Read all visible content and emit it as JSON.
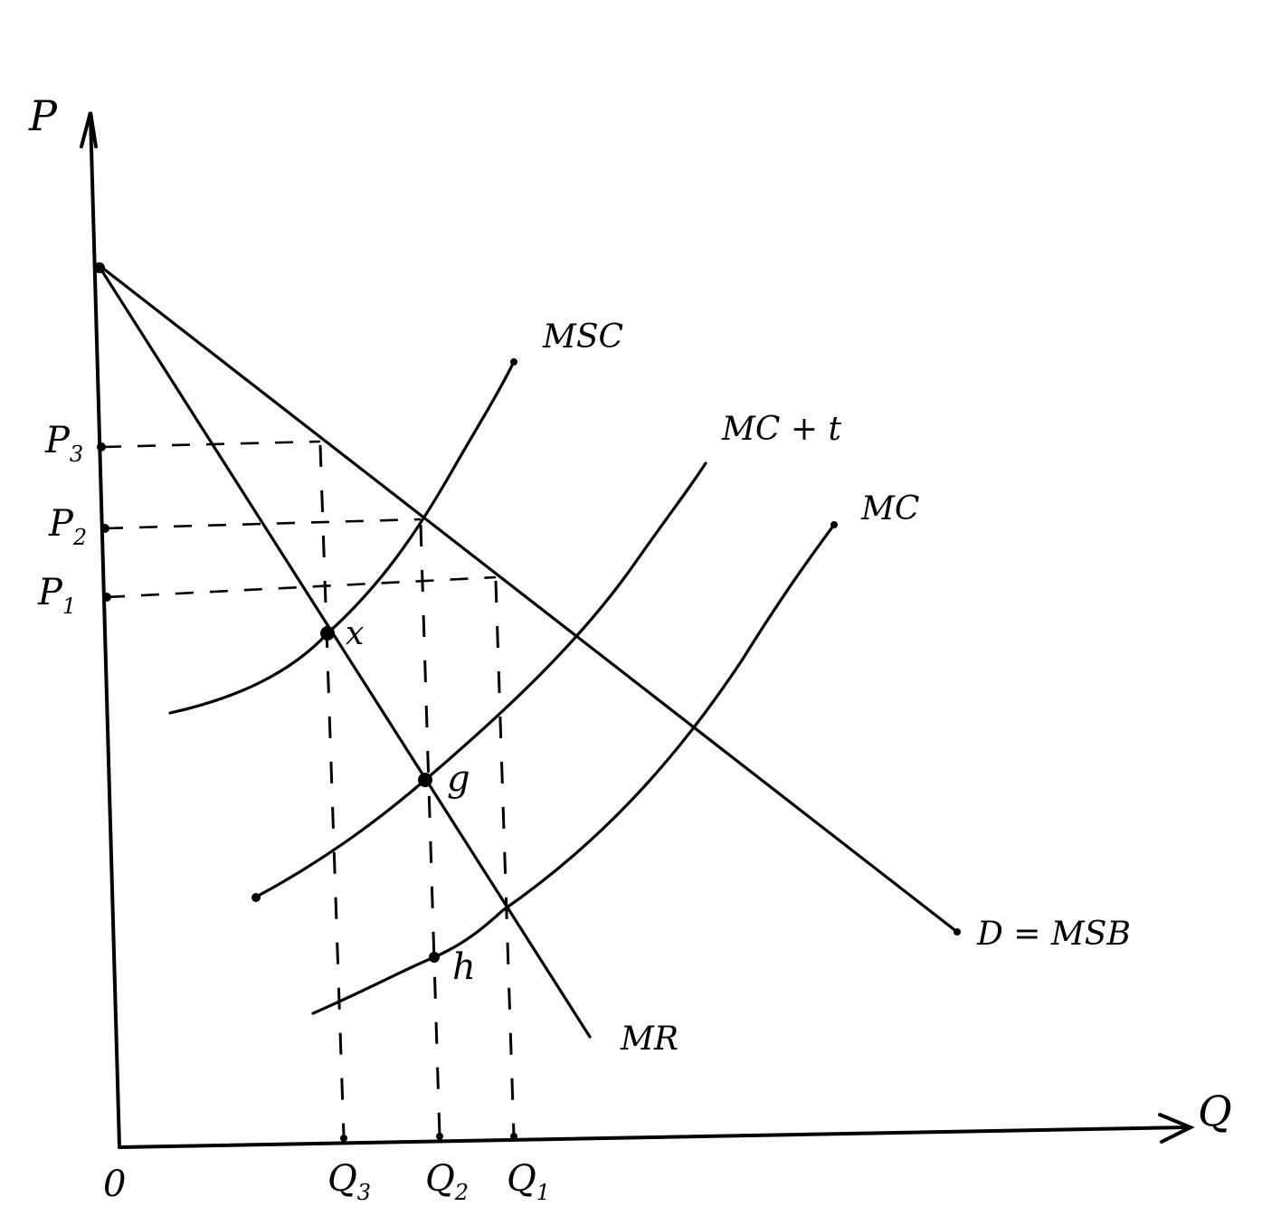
{
  "axes": {
    "y_label": "P",
    "x_label": "Q",
    "origin_label": "0"
  },
  "price_labels": {
    "p3": {
      "base": "P",
      "sub": "3"
    },
    "p2": {
      "base": "P",
      "sub": "2"
    },
    "p1": {
      "base": "P",
      "sub": "1"
    }
  },
  "quantity_labels": {
    "q3": {
      "base": "Q",
      "sub": "3"
    },
    "q2": {
      "base": "Q",
      "sub": "2"
    },
    "q1": {
      "base": "Q",
      "sub": "1"
    }
  },
  "curve_labels": {
    "msc": "MSC",
    "mc_t": "MC + t",
    "mc": "MC",
    "demand": "D = MSB",
    "mr": "MR"
  },
  "point_labels": {
    "x": "x",
    "g": "g",
    "h": "h"
  },
  "colors": {
    "ink": "#000000",
    "paper": "#ffffff"
  }
}
